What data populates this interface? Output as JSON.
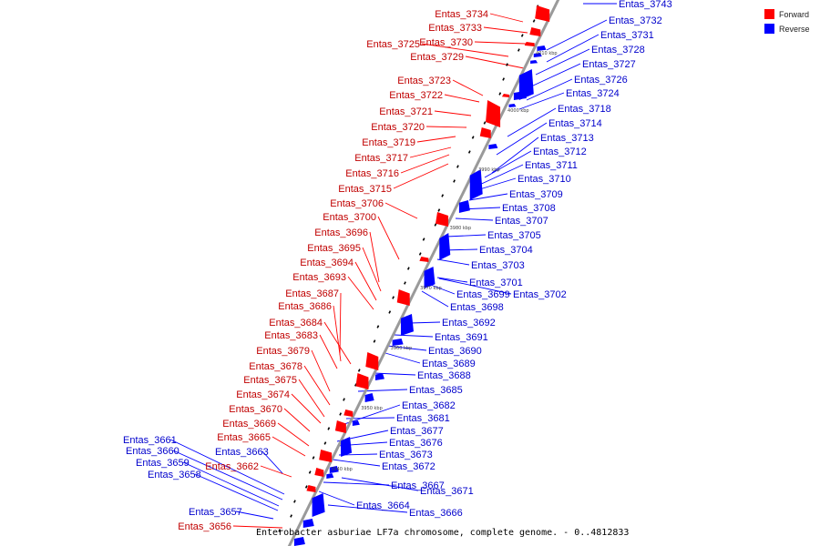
{
  "colors": {
    "forward": "#ff0000",
    "reverse": "#0000ff",
    "backbone": "#9a9a9a",
    "marker": "#000000"
  },
  "legend": {
    "forward": "Forward",
    "reverse": "Reverse"
  },
  "caption": "Enterobacter asburiae LF7a chromosome, complete genome. - 0..4812833",
  "ticks": [
    "4010 kbp",
    "4000 kbp",
    "3990 kbp",
    "3980 kbp",
    "3970 kbp",
    "3960 kbp",
    "3950 kbp",
    "3940 kbp"
  ],
  "forward_labels": [
    "Entas_3734",
    "Entas_3733",
    "Entas_3730",
    "Entas_3725",
    "Entas_3729",
    "Entas_3723",
    "Entas_3722",
    "Entas_3721",
    "Entas_3720",
    "Entas_3719",
    "Entas_3717",
    "Entas_3716",
    "Entas_3715",
    "Entas_3706",
    "Entas_3700",
    "Entas_3696",
    "Entas_3695",
    "Entas_3694",
    "Entas_3693",
    "Entas_3687",
    "Entas_3686",
    "Entas_3684",
    "Entas_3683",
    "Entas_3679",
    "Entas_3678",
    "Entas_3675",
    "Entas_3674",
    "Entas_3670",
    "Entas_3669",
    "Entas_3665",
    "Entas_3662",
    "Entas_3656"
  ],
  "reverse_labels": [
    "Entas_3743",
    "Entas_3732",
    "Entas_3731",
    "Entas_3728",
    "Entas_3727",
    "Entas_3726",
    "Entas_3724",
    "Entas_3718",
    "Entas_3714",
    "Entas_3713",
    "Entas_3712",
    "Entas_3711",
    "Entas_3710",
    "Entas_3709",
    "Entas_3708",
    "Entas_3707",
    "Entas_3705",
    "Entas_3704",
    "Entas_3703",
    "Entas_3701",
    "Entas_3699",
    "Entas_3702",
    "Entas_3698",
    "Entas_3692",
    "Entas_3691",
    "Entas_3690",
    "Entas_3689",
    "Entas_3688",
    "Entas_3685",
    "Entas_3682",
    "Entas_3681",
    "Entas_3677",
    "Entas_3676",
    "Entas_3673",
    "Entas_3672",
    "Entas_3661",
    "Entas_3660",
    "Entas_3659",
    "Entas_3658",
    "Entas_3663",
    "Entas_3667",
    "Entas_3671",
    "Entas_3664",
    "Entas_3666",
    "Entas_3657"
  ]
}
